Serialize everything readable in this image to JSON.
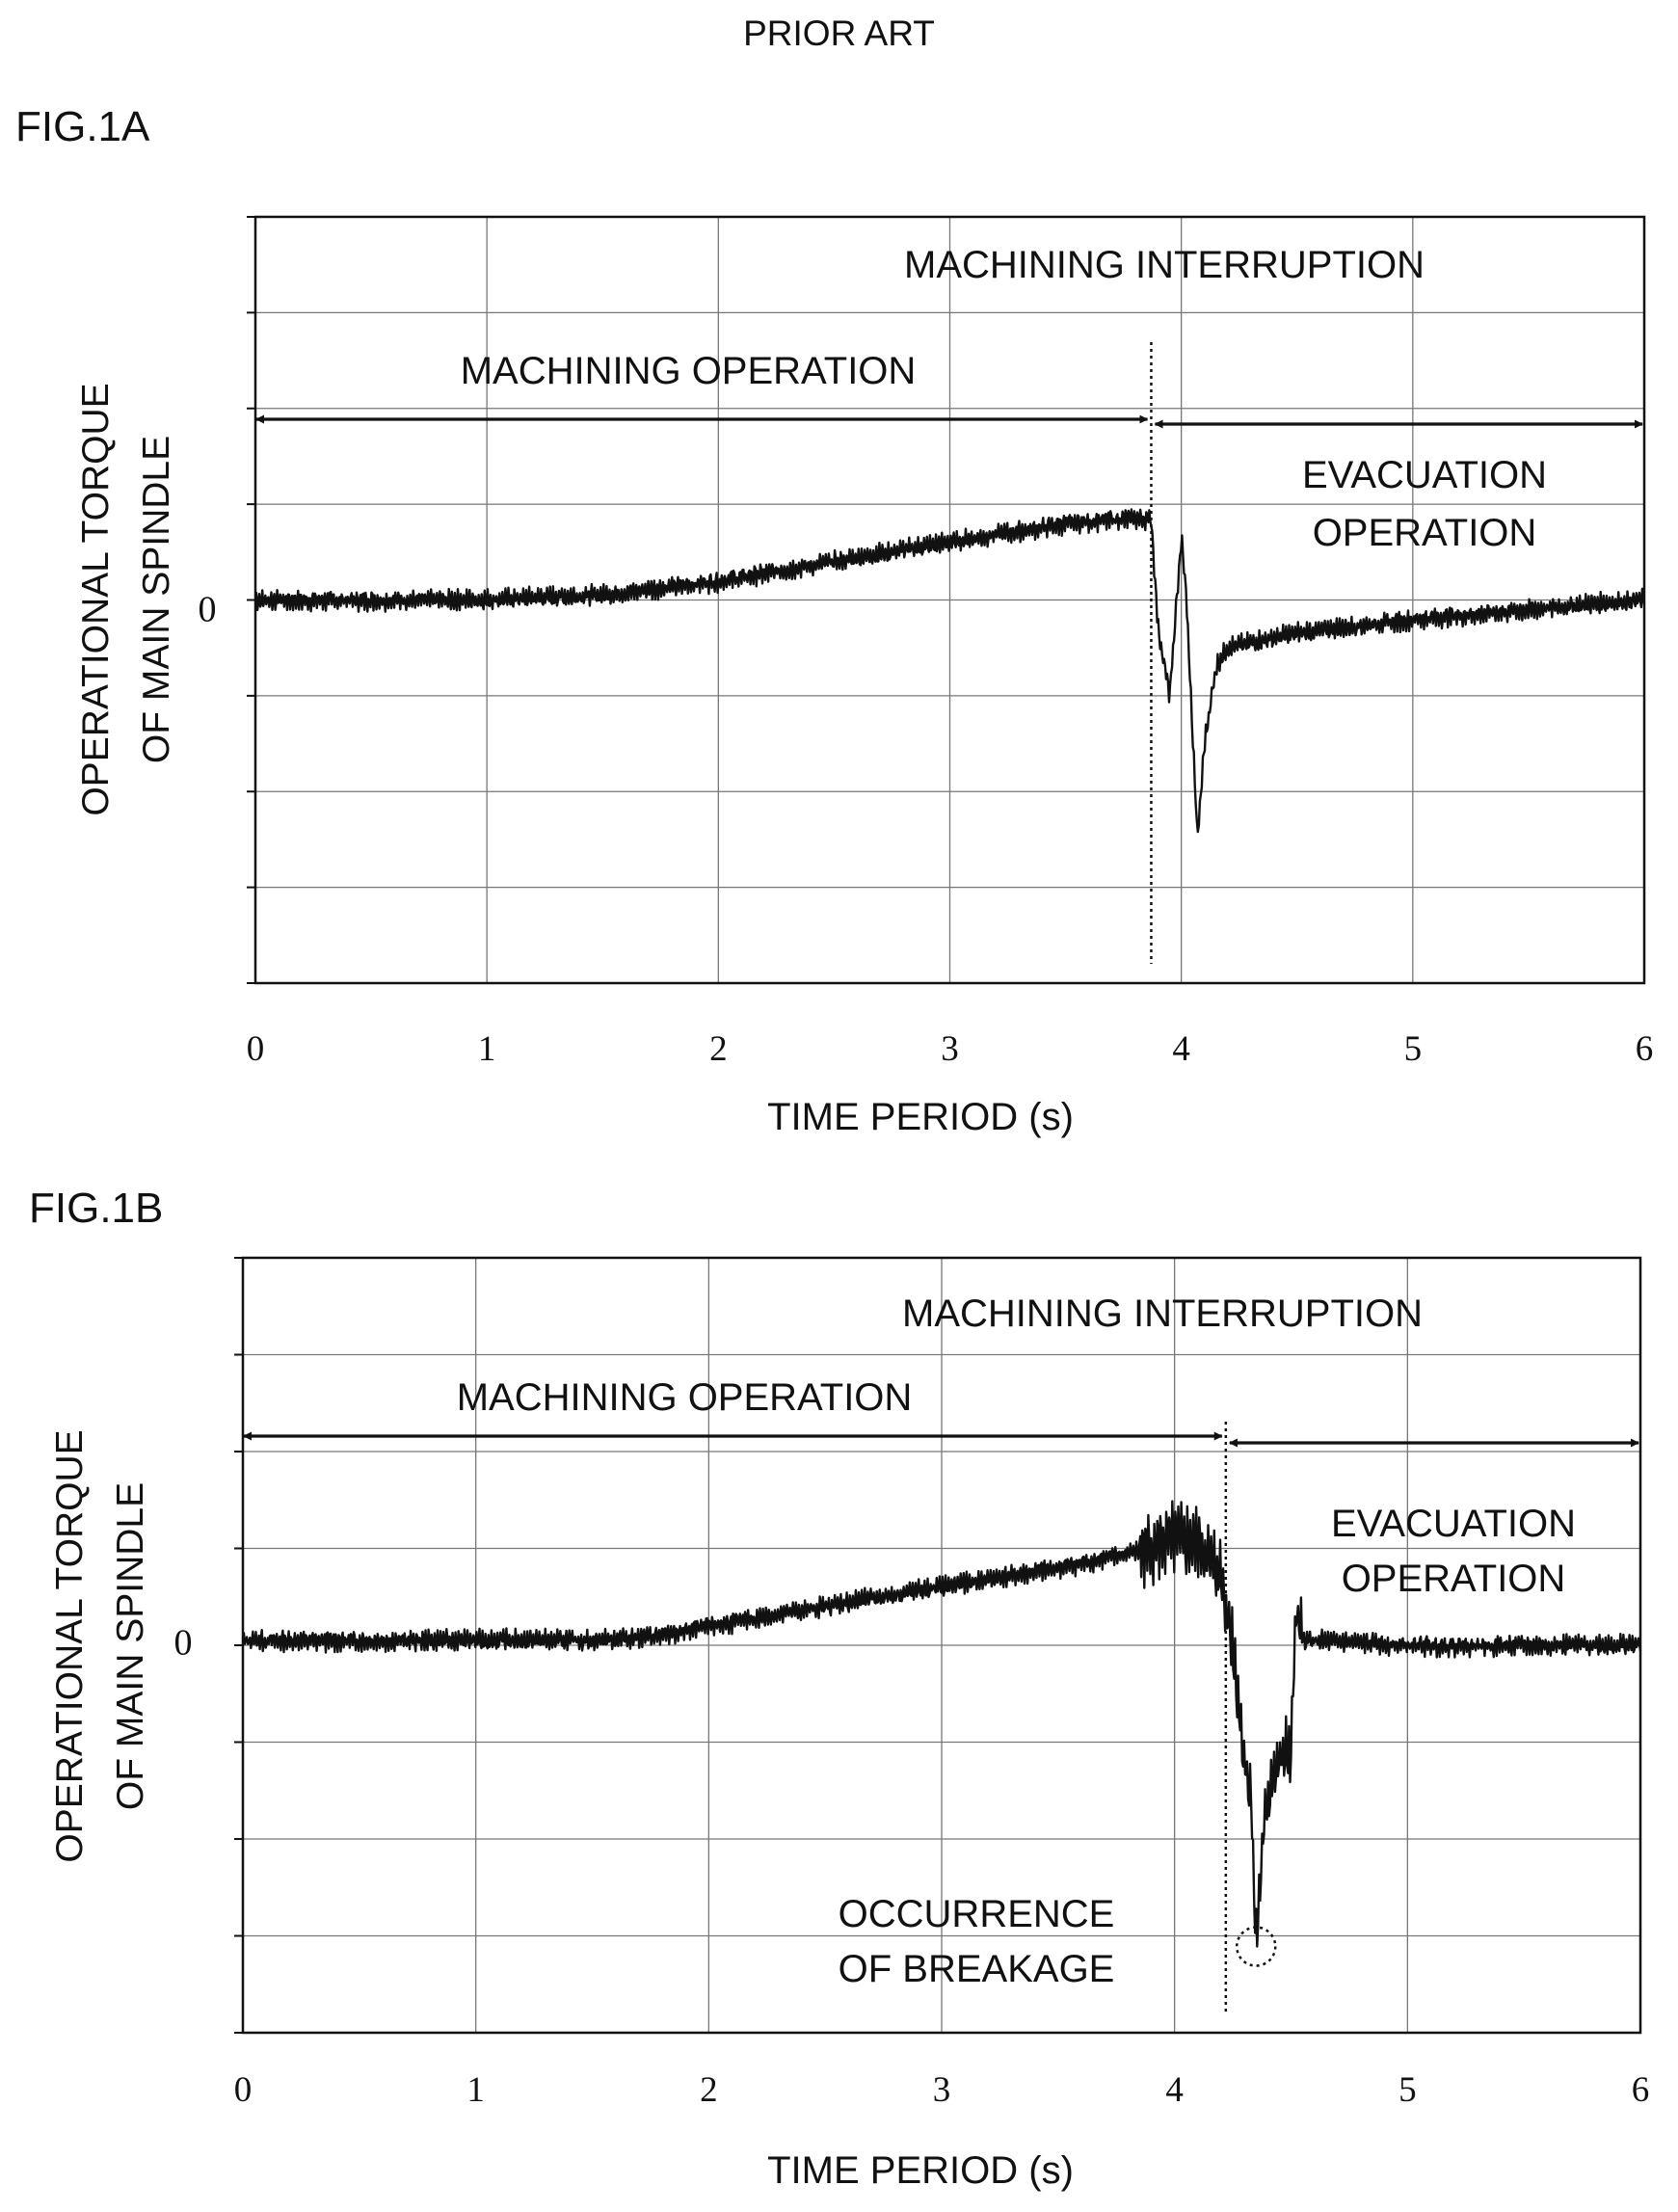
{
  "header": {
    "prior_art": "PRIOR ART"
  },
  "chart_data": [
    {
      "figure_label": "FIG.1A",
      "type": "line",
      "xlabel": "TIME PERIOD (s)",
      "ylabel_line1": "OPERATIONAL TORQUE",
      "ylabel_line2": "OF MAIN SPINDLE",
      "xlim": [
        0,
        6
      ],
      "x_ticks": [
        "0",
        "1",
        "2",
        "3",
        "4",
        "5",
        "6"
      ],
      "ylim": [
        -4,
        4
      ],
      "y_tick_labels": [
        {
          "value": 0,
          "label": "0"
        }
      ],
      "grid": true,
      "interruption_time": 3.87,
      "annotations": {
        "interruption": "MACHINING INTERRUPTION",
        "machining": "MACHINING OPERATION",
        "evacuation_line1": "EVACUATION",
        "evacuation_line2": "OPERATION"
      },
      "series": [
        {
          "x": [
            0,
            0.5,
            1.0,
            1.5,
            2.0,
            2.5,
            3.0,
            3.5,
            3.75,
            3.87,
            3.9,
            3.95,
            4.0,
            4.02,
            4.07,
            4.1,
            4.15,
            4.2,
            4.3,
            4.5,
            5.0,
            5.5,
            6.0
          ],
          "y": [
            0.0,
            0.0,
            0.0,
            0.05,
            0.2,
            0.4,
            0.6,
            0.8,
            0.85,
            0.85,
            -0.3,
            -1.0,
            0.65,
            0.1,
            -2.5,
            -1.5,
            -0.7,
            -0.5,
            -0.45,
            -0.35,
            -0.2,
            -0.1,
            0.0
          ],
          "noise_amplitude": 0.1
        }
      ]
    },
    {
      "figure_label": "FIG.1B",
      "type": "line",
      "xlabel": "TIME PERIOD (s)",
      "ylabel_line1": "OPERATIONAL TORQUE",
      "ylabel_line2": "OF MAIN SPINDLE",
      "xlim": [
        0,
        6
      ],
      "x_ticks": [
        "0",
        "1",
        "2",
        "3",
        "4",
        "5",
        "6"
      ],
      "ylim": [
        -4,
        4
      ],
      "y_tick_labels": [
        {
          "value": 0,
          "label": "0"
        }
      ],
      "grid": true,
      "interruption_time": 4.22,
      "annotations": {
        "interruption": "MACHINING INTERRUPTION",
        "machining": "MACHINING OPERATION",
        "evacuation_line1": "EVACUATION",
        "evacuation_line2": "OPERATION",
        "breakage_line1": "OCCURRENCE",
        "breakage_line2": "OF BREAKAGE"
      },
      "breakage_point": {
        "x": 4.35,
        "y": -3.05
      },
      "series": [
        {
          "x": [
            0,
            0.5,
            1.0,
            1.5,
            1.8,
            2.0,
            2.5,
            3.0,
            3.5,
            3.8,
            4.0,
            4.1,
            4.2,
            4.25,
            4.3,
            4.33,
            4.35,
            4.38,
            4.42,
            4.5,
            4.52,
            4.55,
            5.0,
            5.5,
            6.0
          ],
          "y": [
            0.05,
            0.05,
            0.05,
            0.05,
            0.1,
            0.2,
            0.4,
            0.6,
            0.8,
            0.95,
            1.1,
            1.05,
            0.7,
            0.0,
            -1.2,
            -1.6,
            -3.1,
            -2.0,
            -1.3,
            -1.1,
            0.3,
            0.05,
            0.0,
            0.0,
            0.0
          ],
          "noise_amplitude": 0.1
        }
      ]
    }
  ]
}
